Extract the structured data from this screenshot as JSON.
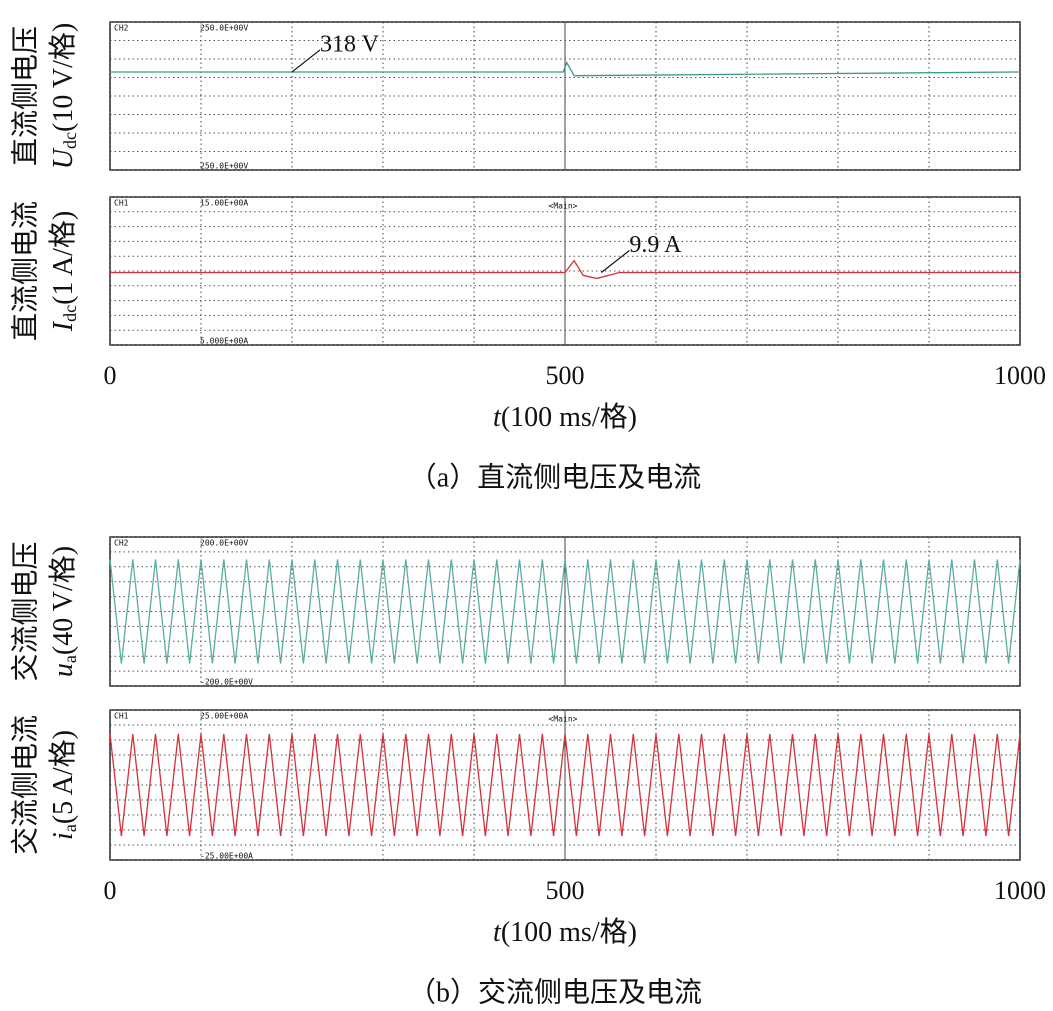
{
  "chart_data": [
    {
      "type": "line",
      "ylabel": "直流侧电压",
      "ylabel_symbol": "U",
      "ylabel_sub": "dc",
      "ylabel_unit": "(10 V/格)",
      "channel": "CH2",
      "top_label": "250.0E+00V",
      "bottom_label": "250.0E+00V",
      "color": "#3a9a8a",
      "xlim": [
        0,
        1000
      ],
      "xgrid": [
        0,
        100,
        200,
        300,
        400,
        500,
        600,
        700,
        800,
        900,
        1000
      ],
      "ylim": [
        265,
        345
      ],
      "yticks": [
        265,
        275,
        285,
        295,
        305,
        315,
        325,
        335,
        345
      ],
      "grid": true,
      "x": [
        0,
        498,
        502,
        510,
        1000
      ],
      "values": [
        318,
        318,
        323,
        316,
        318
      ],
      "annotations": [
        {
          "text": "318 V",
          "x": 200,
          "y": 318
        }
      ]
    },
    {
      "type": "line",
      "ylabel": "直流侧电流",
      "ylabel_symbol": "I",
      "ylabel_sub": "dc",
      "ylabel_unit": "(1 A/格)",
      "channel": "CH1",
      "top_label": "15.00E+00A",
      "bottom_label": "5.000E+00A",
      "marker": "<Main>",
      "color": "#d6303a",
      "xlim": [
        0,
        1000
      ],
      "xgrid": [
        0,
        100,
        200,
        300,
        400,
        500,
        600,
        700,
        800,
        900,
        1000
      ],
      "ylim": [
        5,
        15
      ],
      "yticks": [
        5,
        6,
        7,
        8,
        9,
        10,
        11,
        12,
        13,
        14,
        15
      ],
      "grid": true,
      "x": [
        0,
        500,
        510,
        520,
        535,
        560,
        1000
      ],
      "values": [
        9.9,
        9.9,
        10.7,
        9.7,
        9.5,
        9.9,
        9.9
      ],
      "annotations": [
        {
          "text": "9.9 A",
          "x": 540,
          "y": 9.9
        }
      ],
      "xticks": [
        0,
        500,
        1000
      ],
      "xlabel_symbol": "t",
      "xlabel_unit": "(100 ms/格)",
      "caption": "（a）直流侧电压及电流"
    },
    {
      "type": "line",
      "ylabel": "交流侧电压",
      "ylabel_symbol": "u",
      "ylabel_sub": "a",
      "ylabel_unit": "(40 V/格)",
      "channel": "CH2",
      "top_label": "200.0E+00V",
      "bottom_label": "-200.0E+00V",
      "color": "#5aada0",
      "xlim": [
        0,
        1000
      ],
      "xgrid": [
        0,
        100,
        200,
        300,
        400,
        500,
        600,
        700,
        800,
        900,
        1000
      ],
      "ylim": [
        -200,
        200
      ],
      "yticks": [
        -200,
        -160,
        -120,
        -80,
        -40,
        0,
        40,
        80,
        120,
        160,
        200
      ],
      "grid": true,
      "x": [
        0,
        12.5,
        25,
        37.5,
        50,
        62.5,
        75,
        87.5,
        100,
        112.5,
        125,
        137.5,
        150,
        162.5,
        175,
        187.5,
        200,
        212.5,
        225,
        237.5,
        250,
        262.5,
        275,
        287.5,
        300,
        312.5,
        325,
        337.5,
        350,
        362.5,
        375,
        387.5,
        400,
        412.5,
        425,
        437.5,
        450,
        462.5,
        475,
        487.5,
        500,
        512.5,
        525,
        537.5,
        550,
        562.5,
        575,
        587.5,
        600,
        612.5,
        625,
        637.5,
        650,
        662.5,
        675,
        687.5,
        700,
        712.5,
        725,
        737.5,
        750,
        762.5,
        775,
        787.5,
        800,
        812.5,
        825,
        837.5,
        850,
        862.5,
        875,
        887.5,
        900,
        912.5,
        925,
        937.5,
        950,
        962.5,
        975,
        987.5,
        1000
      ],
      "values": [
        140,
        -140,
        140,
        -140,
        140,
        -140,
        140,
        -140,
        140,
        -140,
        140,
        -140,
        140,
        -140,
        140,
        -140,
        140,
        -140,
        140,
        -140,
        140,
        -140,
        140,
        -140,
        140,
        -140,
        140,
        -140,
        140,
        -140,
        140,
        -140,
        140,
        -140,
        140,
        -140,
        140,
        -140,
        140,
        -140,
        140,
        -140,
        140,
        -140,
        140,
        -140,
        140,
        -140,
        140,
        -140,
        140,
        -140,
        140,
        -140,
        140,
        -140,
        140,
        -140,
        140,
        -140,
        140,
        -140,
        140,
        -140,
        140,
        -140,
        140,
        -140,
        140,
        -140,
        140,
        -140,
        140,
        -140,
        140,
        -140,
        140,
        -140,
        140,
        -140,
        140
      ]
    },
    {
      "type": "line",
      "ylabel": "交流侧电流",
      "ylabel_symbol": "i",
      "ylabel_sub": "a",
      "ylabel_unit": "(5 A/格)",
      "channel": "CH1",
      "top_label": "25.00E+00A",
      "bottom_label": "-25.00E+00A",
      "marker": "<Main>",
      "color": "#d6303a",
      "xlim": [
        0,
        1000
      ],
      "xgrid": [
        0,
        100,
        200,
        300,
        400,
        500,
        600,
        700,
        800,
        900,
        1000
      ],
      "ylim": [
        -25,
        25
      ],
      "yticks": [
        -25,
        -20,
        -15,
        -10,
        -5,
        0,
        5,
        10,
        15,
        20,
        25
      ],
      "grid": true,
      "x": [
        0,
        12.5,
        25,
        37.5,
        50,
        62.5,
        75,
        87.5,
        100,
        112.5,
        125,
        137.5,
        150,
        162.5,
        175,
        187.5,
        200,
        212.5,
        225,
        237.5,
        250,
        262.5,
        275,
        287.5,
        300,
        312.5,
        325,
        337.5,
        350,
        362.5,
        375,
        387.5,
        400,
        412.5,
        425,
        437.5,
        450,
        462.5,
        475,
        487.5,
        500,
        512.5,
        525,
        537.5,
        550,
        562.5,
        575,
        587.5,
        600,
        612.5,
        625,
        637.5,
        650,
        662.5,
        675,
        687.5,
        700,
        712.5,
        725,
        737.5,
        750,
        762.5,
        775,
        787.5,
        800,
        812.5,
        825,
        837.5,
        850,
        862.5,
        875,
        887.5,
        900,
        912.5,
        925,
        937.5,
        950,
        962.5,
        975,
        987.5,
        1000
      ],
      "values": [
        17,
        -17,
        17,
        -17,
        17,
        -17,
        17,
        -17,
        17,
        -17,
        17,
        -17,
        17,
        -17,
        17,
        -17,
        17,
        -17,
        17,
        -17,
        17,
        -17,
        17,
        -17,
        17,
        -17,
        17,
        -17,
        17,
        -17,
        17,
        -17,
        17,
        -17,
        17,
        -17,
        17,
        -17,
        17,
        -17,
        17,
        -17,
        17,
        -17,
        17,
        -17,
        17,
        -17,
        17,
        -17,
        17,
        -17,
        17,
        -17,
        17,
        -17,
        17,
        -17,
        17,
        -17,
        17,
        -17,
        17,
        -17,
        17,
        -17,
        17,
        -17,
        17,
        -17,
        17,
        -17,
        17,
        -17,
        17,
        -17,
        17,
        -17,
        17,
        -17,
        17
      ],
      "xticks": [
        0,
        500,
        1000
      ],
      "xlabel_symbol": "t",
      "xlabel_unit": "(100 ms/格)",
      "caption": "（b）交流侧电压及电流"
    }
  ]
}
